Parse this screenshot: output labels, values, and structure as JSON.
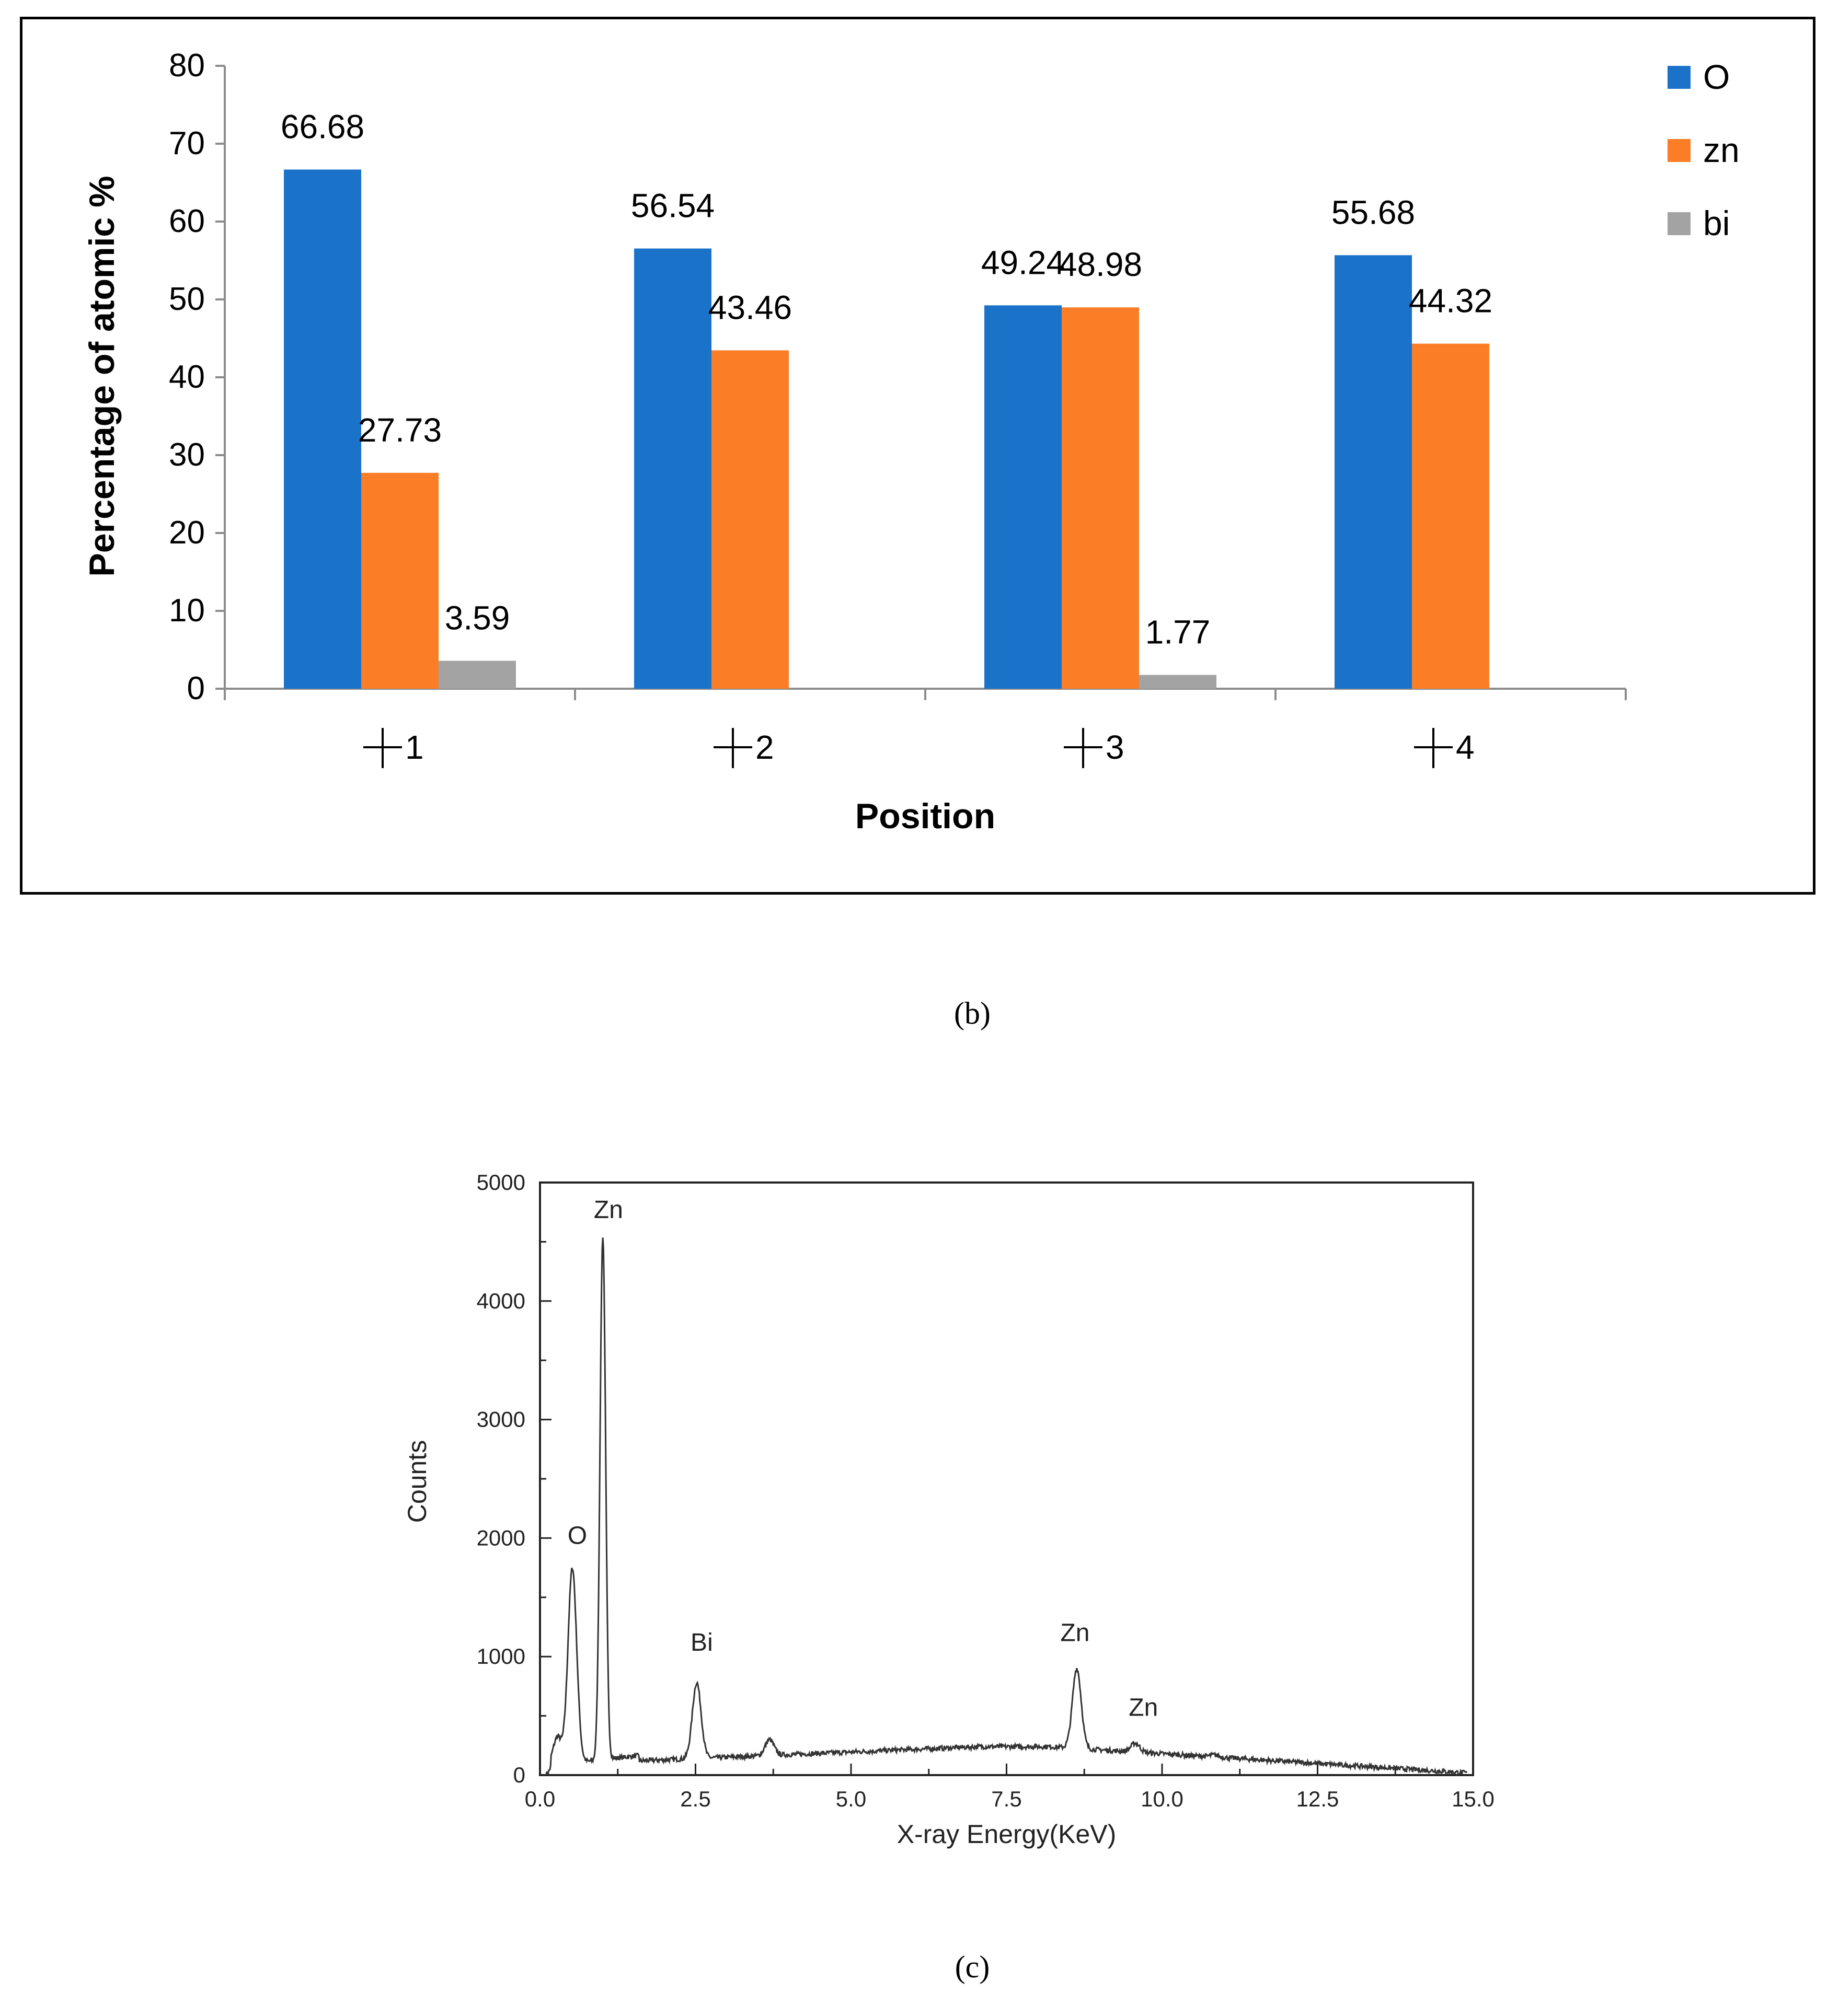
{
  "captions": {
    "b": "(b)",
    "c": "(c)"
  },
  "chart_data": [
    {
      "type": "bar",
      "xlabel": "Position",
      "ylabel": "Percentage of atomic %",
      "categories": [
        "\u00001",
        "\u00002",
        "\u00003",
        "\u00004"
      ],
      "category_glyph": "+",
      "category_numbers": [
        "1",
        "2",
        "3",
        "4"
      ],
      "ylim": [
        0,
        80
      ],
      "yticks": [
        0,
        10,
        20,
        30,
        40,
        50,
        60,
        70,
        80
      ],
      "legend_position": "top-right",
      "series": [
        {
          "name": "O",
          "color": "#1b72c9",
          "values": [
            66.68,
            56.54,
            49.24,
            55.68
          ],
          "labels": [
            "66.68",
            "56.54",
            "49.24",
            "55.68"
          ]
        },
        {
          "name": "zn",
          "color": "#fb7e27",
          "values": [
            27.73,
            43.46,
            48.98,
            44.32
          ],
          "labels": [
            "27.73",
            "43.46",
            "48.98",
            "44.32"
          ]
        },
        {
          "name": "bi",
          "color": "#a3a3a3",
          "values": [
            3.59,
            0,
            1.77,
            0
          ],
          "labels": [
            "3.59",
            "",
            "1.77",
            ""
          ]
        }
      ]
    },
    {
      "type": "line",
      "xlabel": "X-ray Energy(KeV)",
      "ylabel": "Counts",
      "xlim": [
        0.0,
        15.0
      ],
      "ylim": [
        0,
        5000
      ],
      "xticks": [
        "0.0",
        "2.5",
        "5.0",
        "7.5",
        "10.0",
        "12.5",
        "15.0"
      ],
      "yticks": [
        "0",
        "1000",
        "2000",
        "3000",
        "4000",
        "5000"
      ],
      "color": "#333333",
      "peaks": [
        {
          "x": 0.28,
          "y": 320
        },
        {
          "x": 0.52,
          "y": 1750
        },
        {
          "x": 1.01,
          "y": 4550
        },
        {
          "x": 2.52,
          "y": 780
        },
        {
          "x": 3.69,
          "y": 300
        },
        {
          "x": 8.63,
          "y": 900
        },
        {
          "x": 9.57,
          "y": 270
        },
        {
          "x": 10.84,
          "y": 170
        }
      ],
      "annotations": [
        {
          "text": "Zn",
          "x": 1.1,
          "y": 4700
        },
        {
          "text": "O",
          "x": 0.6,
          "y": 1950
        },
        {
          "text": "Bi",
          "x": 2.6,
          "y": 1050
        },
        {
          "text": "Zn",
          "x": 8.6,
          "y": 1130
        },
        {
          "text": "Zn",
          "x": 9.7,
          "y": 500
        }
      ]
    }
  ]
}
